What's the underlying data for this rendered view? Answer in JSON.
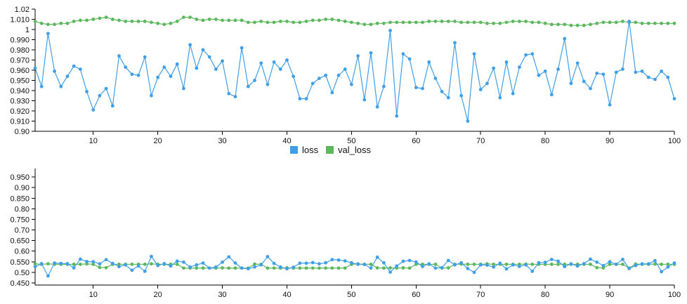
{
  "colors": {
    "loss": "#3f9fe8",
    "val_loss": "#5cb85c"
  },
  "legend": {
    "items": [
      {
        "label": "loss",
        "color": "#3f9fe8"
      },
      {
        "label": "val_loss",
        "color": "#5cb85c"
      }
    ]
  },
  "chart_data": [
    {
      "type": "line",
      "title": "",
      "xlabel": "",
      "ylabel": "",
      "xlim": [
        1,
        100
      ],
      "ylim": [
        0.9,
        1.02
      ],
      "x_ticks": [
        10,
        20,
        30,
        40,
        50,
        60,
        70,
        80,
        90,
        100
      ],
      "y_ticks": [
        "0.90",
        "0.910",
        "0.920",
        "0.930",
        "0.940",
        "0.950",
        "0.960",
        "0.970",
        "0.980",
        "0.990",
        "1",
        "1.010",
        "1.02"
      ],
      "y_tick_values": [
        0.9,
        0.91,
        0.92,
        0.93,
        0.94,
        0.95,
        0.96,
        0.97,
        0.98,
        0.99,
        1.0,
        1.01,
        1.02
      ],
      "series": [
        {
          "name": "loss",
          "values": [
            0.962,
            0.944,
            0.996,
            0.959,
            0.944,
            0.954,
            0.964,
            0.961,
            0.939,
            0.921,
            0.935,
            0.942,
            0.925,
            0.974,
            0.963,
            0.956,
            0.955,
            0.973,
            0.935,
            0.953,
            0.963,
            0.954,
            0.966,
            0.942,
            0.985,
            0.962,
            0.98,
            0.973,
            0.961,
            0.969,
            0.937,
            0.934,
            0.982,
            0.944,
            0.95,
            0.967,
            0.946,
            0.968,
            0.961,
            0.97,
            0.954,
            0.932,
            0.932,
            0.947,
            0.952,
            0.955,
            0.938,
            0.955,
            0.961,
            0.946,
            0.974,
            0.931,
            0.977,
            0.924,
            0.944,
            0.999,
            0.915,
            0.976,
            0.971,
            0.943,
            0.942,
            0.968,
            0.952,
            0.939,
            0.933,
            0.987,
            0.935,
            0.91,
            0.976,
            0.941,
            0.947,
            0.962,
            0.933,
            0.968,
            0.937,
            0.963,
            0.975,
            0.976,
            0.955,
            0.959,
            0.936,
            0.961,
            0.991,
            0.947,
            0.967,
            0.949,
            0.942,
            0.957,
            0.956,
            0.926,
            0.958,
            0.961,
            1.008,
            0.958,
            0.959,
            0.953,
            0.951,
            0.959,
            0.953,
            0.932
          ]
        },
        {
          "name": "val_loss",
          "values": [
            1.008,
            1.006,
            1.005,
            1.005,
            1.006,
            1.006,
            1.008,
            1.009,
            1.009,
            1.01,
            1.011,
            1.012,
            1.01,
            1.009,
            1.008,
            1.008,
            1.008,
            1.008,
            1.007,
            1.006,
            1.005,
            1.006,
            1.008,
            1.012,
            1.012,
            1.01,
            1.009,
            1.01,
            1.01,
            1.009,
            1.009,
            1.009,
            1.009,
            1.007,
            1.007,
            1.008,
            1.007,
            1.007,
            1.008,
            1.008,
            1.007,
            1.007,
            1.008,
            1.009,
            1.009,
            1.01,
            1.01,
            1.009,
            1.008,
            1.007,
            1.006,
            1.005,
            1.005,
            1.006,
            1.006,
            1.007,
            1.007,
            1.007,
            1.007,
            1.007,
            1.007,
            1.008,
            1.008,
            1.008,
            1.008,
            1.008,
            1.007,
            1.007,
            1.007,
            1.007,
            1.006,
            1.006,
            1.006,
            1.007,
            1.008,
            1.008,
            1.008,
            1.007,
            1.007,
            1.006,
            1.005,
            1.005,
            1.005,
            1.004,
            1.004,
            1.004,
            1.005,
            1.006,
            1.007,
            1.007,
            1.007,
            1.008,
            1.007,
            1.007,
            1.006,
            1.006,
            1.006,
            1.006,
            1.006,
            1.006
          ]
        }
      ]
    },
    {
      "type": "line",
      "title": "",
      "xlabel": "",
      "ylabel": "",
      "xlim": [
        1,
        100
      ],
      "ylim": [
        0.44,
        0.99
      ],
      "x_ticks": [
        10,
        20,
        30,
        40,
        50,
        60,
        70,
        80,
        90,
        100
      ],
      "y_ticks": [
        "0.450",
        "0.50",
        "0.550",
        "0.60",
        "0.650",
        "0.70",
        "0.750",
        "0.80",
        "0.850",
        "0.90",
        "0.950"
      ],
      "y_tick_values": [
        0.45,
        0.5,
        0.55,
        0.6,
        0.65,
        0.7,
        0.75,
        0.8,
        0.85,
        0.9,
        0.95
      ],
      "series": [
        {
          "name": "loss",
          "values": [
            0.527,
            0.541,
            0.483,
            0.544,
            0.542,
            0.541,
            0.521,
            0.562,
            0.551,
            0.55,
            0.54,
            0.56,
            0.542,
            0.527,
            0.535,
            0.51,
            0.53,
            0.505,
            0.575,
            0.532,
            0.541,
            0.53,
            0.553,
            0.548,
            0.525,
            0.535,
            0.544,
            0.52,
            0.525,
            0.548,
            0.573,
            0.544,
            0.52,
            0.517,
            0.525,
            0.535,
            0.574,
            0.542,
            0.525,
            0.517,
            0.524,
            0.543,
            0.543,
            0.546,
            0.54,
            0.545,
            0.56,
            0.558,
            0.554,
            0.545,
            0.538,
            0.537,
            0.52,
            0.571,
            0.545,
            0.501,
            0.53,
            0.552,
            0.556,
            0.549,
            0.528,
            0.54,
            0.52,
            0.522,
            0.556,
            0.535,
            0.545,
            0.518,
            0.5,
            0.535,
            0.534,
            0.525,
            0.543,
            0.516,
            0.535,
            0.528,
            0.535,
            0.505,
            0.545,
            0.547,
            0.561,
            0.553,
            0.527,
            0.54,
            0.53,
            0.541,
            0.562,
            0.548,
            0.532,
            0.55,
            0.538,
            0.561,
            0.518,
            0.532,
            0.54,
            0.54,
            0.555,
            0.503,
            0.525,
            0.544
          ]
        },
        {
          "name": "val_loss",
          "values": [
            0.54,
            0.538,
            0.54,
            0.538,
            0.538,
            0.538,
            0.538,
            0.538,
            0.54,
            0.538,
            0.523,
            0.522,
            0.538,
            0.538,
            0.538,
            0.538,
            0.538,
            0.538,
            0.54,
            0.538,
            0.538,
            0.538,
            0.538,
            0.52,
            0.52,
            0.52,
            0.52,
            0.52,
            0.52,
            0.521,
            0.52,
            0.52,
            0.52,
            0.52,
            0.539,
            0.538,
            0.52,
            0.52,
            0.52,
            0.521,
            0.52,
            0.52,
            0.52,
            0.52,
            0.52,
            0.52,
            0.52,
            0.52,
            0.52,
            0.538,
            0.54,
            0.538,
            0.538,
            0.521,
            0.52,
            0.521,
            0.52,
            0.521,
            0.52,
            0.538,
            0.538,
            0.538,
            0.538,
            0.52,
            0.521,
            0.538,
            0.539,
            0.538,
            0.538,
            0.538,
            0.54,
            0.538,
            0.538,
            0.538,
            0.538,
            0.538,
            0.539,
            0.538,
            0.538,
            0.538,
            0.538,
            0.538,
            0.538,
            0.538,
            0.538,
            0.538,
            0.538,
            0.522,
            0.521,
            0.538,
            0.538,
            0.538,
            0.52,
            0.539,
            0.538,
            0.538,
            0.539,
            0.538,
            0.538,
            0.538
          ]
        }
      ]
    }
  ]
}
